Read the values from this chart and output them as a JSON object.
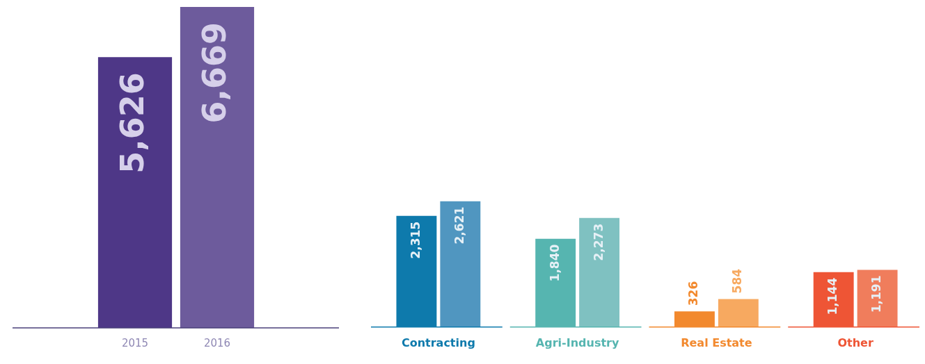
{
  "chart_data": [
    {
      "type": "bar",
      "categories": [
        "2015",
        "2016"
      ],
      "values": [
        5626,
        6669
      ],
      "value_labels": [
        "5,626",
        "6,669"
      ],
      "colors": [
        "#4e3787",
        "#6d5b9c"
      ]
    },
    {
      "type": "bar",
      "categories": [
        "Contracting",
        "Agri-Industry",
        "Real Estate",
        "Other"
      ],
      "series": [
        {
          "values": [
            2315,
            1840,
            326,
            1144
          ],
          "value_labels": [
            "2,315",
            "1,840",
            "326",
            "1,144"
          ],
          "colors": [
            "#0e7aac",
            "#56b5b0",
            "#f2892e",
            "#ee5535"
          ]
        },
        {
          "values": [
            2621,
            2273,
            584,
            1191
          ],
          "value_labels": [
            "2,621",
            "2,273",
            "584",
            "1,191"
          ],
          "colors": [
            "#5096c0",
            "#7fc1c1",
            "#f7a960",
            "#f07d5c"
          ]
        }
      ]
    }
  ]
}
